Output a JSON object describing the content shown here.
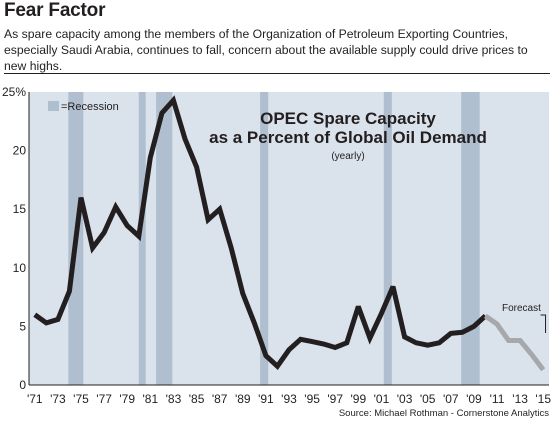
{
  "header": {
    "headline": "Fear Factor",
    "deck": "As spare capacity among the members of the Organization of Petroleum Exporting Countries, especially Saudi Arabia, continues to fall, concern about the available supply could drive prices to new highs."
  },
  "source": "Source: Michael Rothman - Cornerstone Analytics",
  "colors": {
    "plot_background": "#dae2eb",
    "recession_band": "#b0bfcf",
    "actual_line": "#231f20",
    "forecast_line": "#a6a8ab"
  },
  "chart_data": {
    "type": "line",
    "title": "OPEC Spare Capacity",
    "title_line2": "as a Percent of Global Oil Demand",
    "subtitle": "(yearly)",
    "xlabel": "",
    "ylabel": "",
    "xlim": [
      1970.5,
      2015.5
    ],
    "ylim": [
      0,
      25
    ],
    "y_ticks": [
      0,
      5,
      10,
      15,
      20,
      25
    ],
    "y_tick_labels": [
      "0",
      "5",
      "10",
      "15",
      "20",
      "25%"
    ],
    "x_ticks": [
      1971,
      1973,
      1975,
      1977,
      1979,
      1981,
      1983,
      1985,
      1987,
      1989,
      1991,
      1993,
      1995,
      1997,
      1999,
      2001,
      2003,
      2005,
      2007,
      2009,
      2011,
      2013,
      2015
    ],
    "x_tick_labels": [
      "'71",
      "'73",
      "'75",
      "'77",
      "'79",
      "'81",
      "'83",
      "'85",
      "'87",
      "'89",
      "'91",
      "'93",
      "'95",
      "'97",
      "'99",
      "'01",
      "'03",
      "'05",
      "'07",
      "'09",
      "'11",
      "'13",
      "'15"
    ],
    "grid": false,
    "legend": {
      "position": "top-left",
      "entries": [
        {
          "label": "=Recession"
        }
      ]
    },
    "recessions": [
      [
        1973.9,
        1975.2
      ],
      [
        1980.0,
        1980.6
      ],
      [
        1981.5,
        1982.9
      ],
      [
        1990.5,
        1991.2
      ],
      [
        2001.2,
        2001.9
      ],
      [
        2007.9,
        2009.5
      ]
    ],
    "series": [
      {
        "style": "actual",
        "x": [
          1971,
          1972,
          1973,
          1974,
          1975,
          1976,
          1977,
          1978,
          1979,
          1980,
          1981,
          1982,
          1983,
          1984,
          1985,
          1986,
          1987,
          1988,
          1989,
          1990,
          1991,
          1992,
          1993,
          1994,
          1995,
          1996,
          1997,
          1998,
          1999,
          2000,
          2001,
          2002,
          2003,
          2004,
          2005,
          2006,
          2007,
          2008,
          2009,
          2010
        ],
        "values": [
          6.0,
          5.3,
          5.6,
          8.0,
          16.0,
          11.7,
          13.0,
          15.2,
          13.6,
          12.7,
          19.4,
          23.2,
          24.3,
          21.0,
          18.6,
          14.1,
          15.0,
          11.7,
          7.8,
          5.3,
          2.5,
          1.6,
          3.0,
          3.9,
          3.7,
          3.5,
          3.2,
          3.6,
          6.7,
          4.0,
          6.1,
          8.4,
          4.1,
          3.6,
          3.4,
          3.6,
          4.4,
          4.5,
          5.0,
          5.9
        ]
      },
      {
        "style": "forecast",
        "label": "Forecast",
        "x": [
          2010,
          2011,
          2012,
          2013,
          2014,
          2015
        ],
        "values": [
          5.9,
          5.2,
          3.8,
          3.8,
          2.6,
          1.3
        ]
      }
    ]
  }
}
